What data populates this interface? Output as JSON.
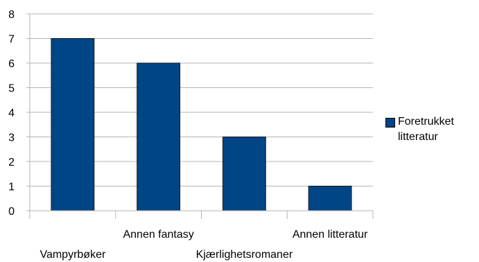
{
  "chart_data": {
    "type": "bar",
    "title": "",
    "xlabel": "",
    "ylabel": "",
    "categories": [
      "Vampyrbøker",
      "Annen fantasy",
      "Kjærlighetsromaner",
      "Annen litteratur"
    ],
    "series": [
      {
        "name": "Foretrukket litteratur",
        "values": [
          7,
          6,
          3,
          1
        ],
        "color": "#004586"
      }
    ],
    "ylim": [
      0,
      8
    ],
    "yticks": [
      0,
      1,
      2,
      3,
      4,
      5,
      6,
      7,
      8
    ],
    "grid": true,
    "legend_position": "right"
  }
}
